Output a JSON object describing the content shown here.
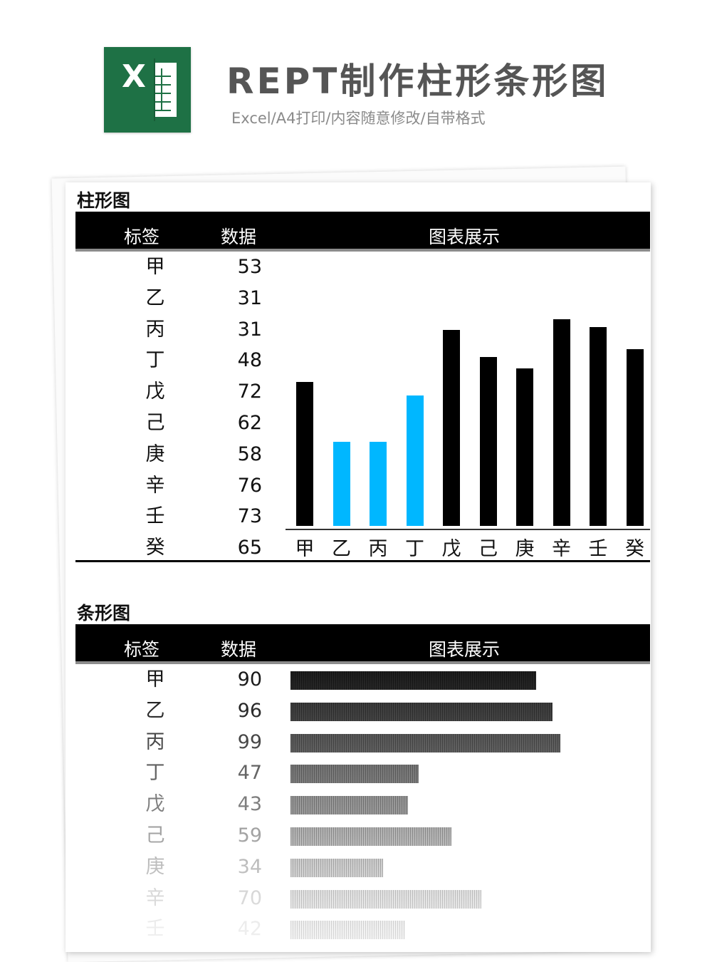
{
  "header": {
    "logo_letter": "X",
    "title": "REPT制作柱形条形图",
    "subtitle": "Excel/A4打印/内容随意修改/自带格式"
  },
  "column_section": {
    "title": "柱形图",
    "headers": [
      "标签",
      "数据",
      "图表展示"
    ],
    "rows": [
      {
        "label": "甲",
        "value": "53"
      },
      {
        "label": "乙",
        "value": "31"
      },
      {
        "label": "丙",
        "value": "31"
      },
      {
        "label": "丁",
        "value": "48"
      },
      {
        "label": "戊",
        "value": "72"
      },
      {
        "label": "己",
        "value": "62"
      },
      {
        "label": "庚",
        "value": "58"
      },
      {
        "label": "辛",
        "value": "76"
      },
      {
        "label": "壬",
        "value": "73"
      },
      {
        "label": "癸",
        "value": "65"
      }
    ]
  },
  "bar_section": {
    "title": "条形图",
    "headers": [
      "标签",
      "数据",
      "图表展示"
    ],
    "rows": [
      {
        "label": "甲",
        "value": "90"
      },
      {
        "label": "乙",
        "value": "96"
      },
      {
        "label": "丙",
        "value": "99"
      },
      {
        "label": "丁",
        "value": "47"
      },
      {
        "label": "戊",
        "value": "43"
      },
      {
        "label": "己",
        "value": "59"
      },
      {
        "label": "庚",
        "value": "34"
      },
      {
        "label": "辛",
        "value": "70"
      },
      {
        "label": "壬",
        "value": "42"
      }
    ]
  },
  "chart_data": [
    {
      "type": "bar",
      "orientation": "vertical",
      "categories": [
        "甲",
        "乙",
        "丙",
        "丁",
        "戊",
        "己",
        "庚",
        "辛",
        "壬",
        "癸"
      ],
      "values": [
        53,
        31,
        31,
        48,
        72,
        62,
        58,
        76,
        73,
        65
      ],
      "colors": [
        "#000000",
        "#00b7ff",
        "#00b7ff",
        "#00b7ff",
        "#000000",
        "#000000",
        "#000000",
        "#000000",
        "#000000",
        "#000000"
      ],
      "ylim": [
        0,
        76
      ]
    },
    {
      "type": "bar",
      "orientation": "horizontal",
      "categories": [
        "甲",
        "乙",
        "丙",
        "丁",
        "戊",
        "己",
        "庚",
        "辛",
        "壬"
      ],
      "values": [
        90,
        96,
        99,
        47,
        43,
        59,
        34,
        70,
        42
      ],
      "colors": [
        "#1a1a1a",
        "#2a2a2a",
        "#3a3a3a",
        "#4f4f4f",
        "#686868",
        "#838383",
        "#9d9d9d",
        "#b7b7b7",
        "#cccccc"
      ]
    }
  ],
  "colors": {
    "excel_green": "#1e7145",
    "accent_blue": "#00b7ff",
    "header_bg": "#000000"
  }
}
